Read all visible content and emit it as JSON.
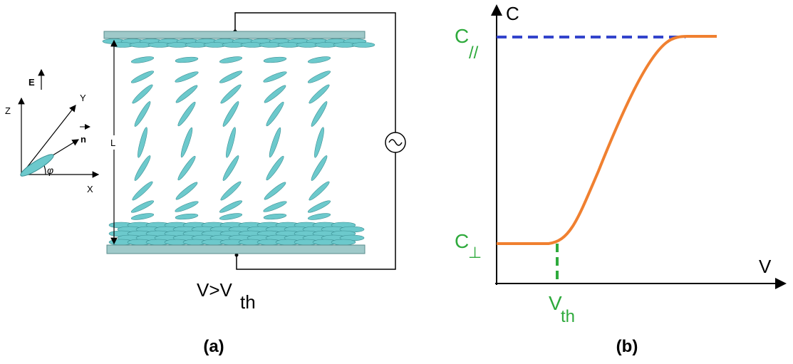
{
  "panel_a": {
    "axes": {
      "field": "E",
      "z": "Z",
      "y": "Y",
      "director": "n",
      "angle": "φ",
      "x": "X"
    },
    "thickness": "L",
    "condition": {
      "main": "V>V",
      "subscript": "th"
    },
    "caption": "(a)"
  },
  "panel_b": {
    "y_axis": "C",
    "x_axis": "V",
    "c_parallel": {
      "main": "C",
      "subscript": "//"
    },
    "c_perp": {
      "main": "C",
      "subscript": "⊥"
    },
    "v_threshold": {
      "main": "V",
      "subscript": "th"
    },
    "caption": "(b)"
  }
}
